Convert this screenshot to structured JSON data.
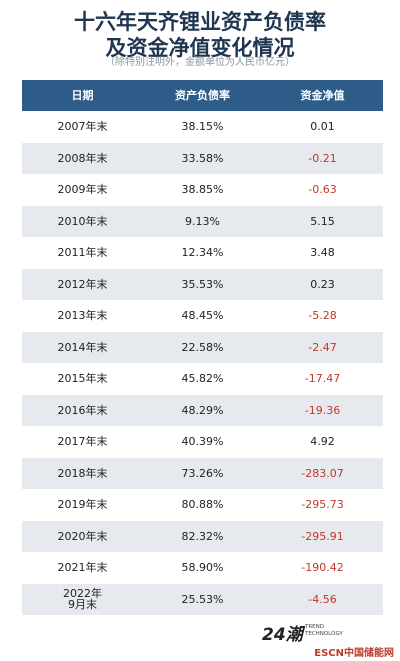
{
  "header": {
    "title_lines": [
      "十六年天齐锂业资产负债率",
      "及资金净值变化情况"
    ],
    "subtitle": "（除特别注明外，金额单位为人民币亿元）"
  },
  "table": {
    "columns": [
      "日期",
      "资产负债率",
      "资金净值"
    ],
    "rows": [
      [
        "2007年末",
        "38.15%",
        "0.01"
      ],
      [
        "2008年末",
        "33.58%",
        "-0.21"
      ],
      [
        "2009年末",
        "38.85%",
        "-0.63"
      ],
      [
        "2010年末",
        "9.13%",
        "5.15"
      ],
      [
        "2011年末",
        "12.34%",
        "3.48"
      ],
      [
        "2012年末",
        "35.53%",
        "0.23"
      ],
      [
        "2013年末",
        "48.45%",
        "-5.28"
      ],
      [
        "2014年末",
        "22.58%",
        "-2.47"
      ],
      [
        "2015年末",
        "45.82%",
        "-17.47"
      ],
      [
        "2016年末",
        "48.29%",
        "-19.36"
      ],
      [
        "2017年末",
        "40.39%",
        "4.92"
      ],
      [
        "2018年末",
        "73.26%",
        "-283.07"
      ],
      [
        "2019年末",
        "80.88%",
        "-295.73"
      ],
      [
        "2020年末",
        "82.32%",
        "-295.91"
      ],
      [
        "2021年末",
        "58.90%",
        "-190.42"
      ],
      [
        [
          "2022年",
          "9月末"
        ],
        "25.53%",
        "-4.56"
      ]
    ]
  },
  "footer": {
    "logo": "24潮",
    "logo_sub_lines": [
      "TREND",
      "TECHNOLOGY"
    ],
    "watermark": "ESCN中国储能网"
  }
}
